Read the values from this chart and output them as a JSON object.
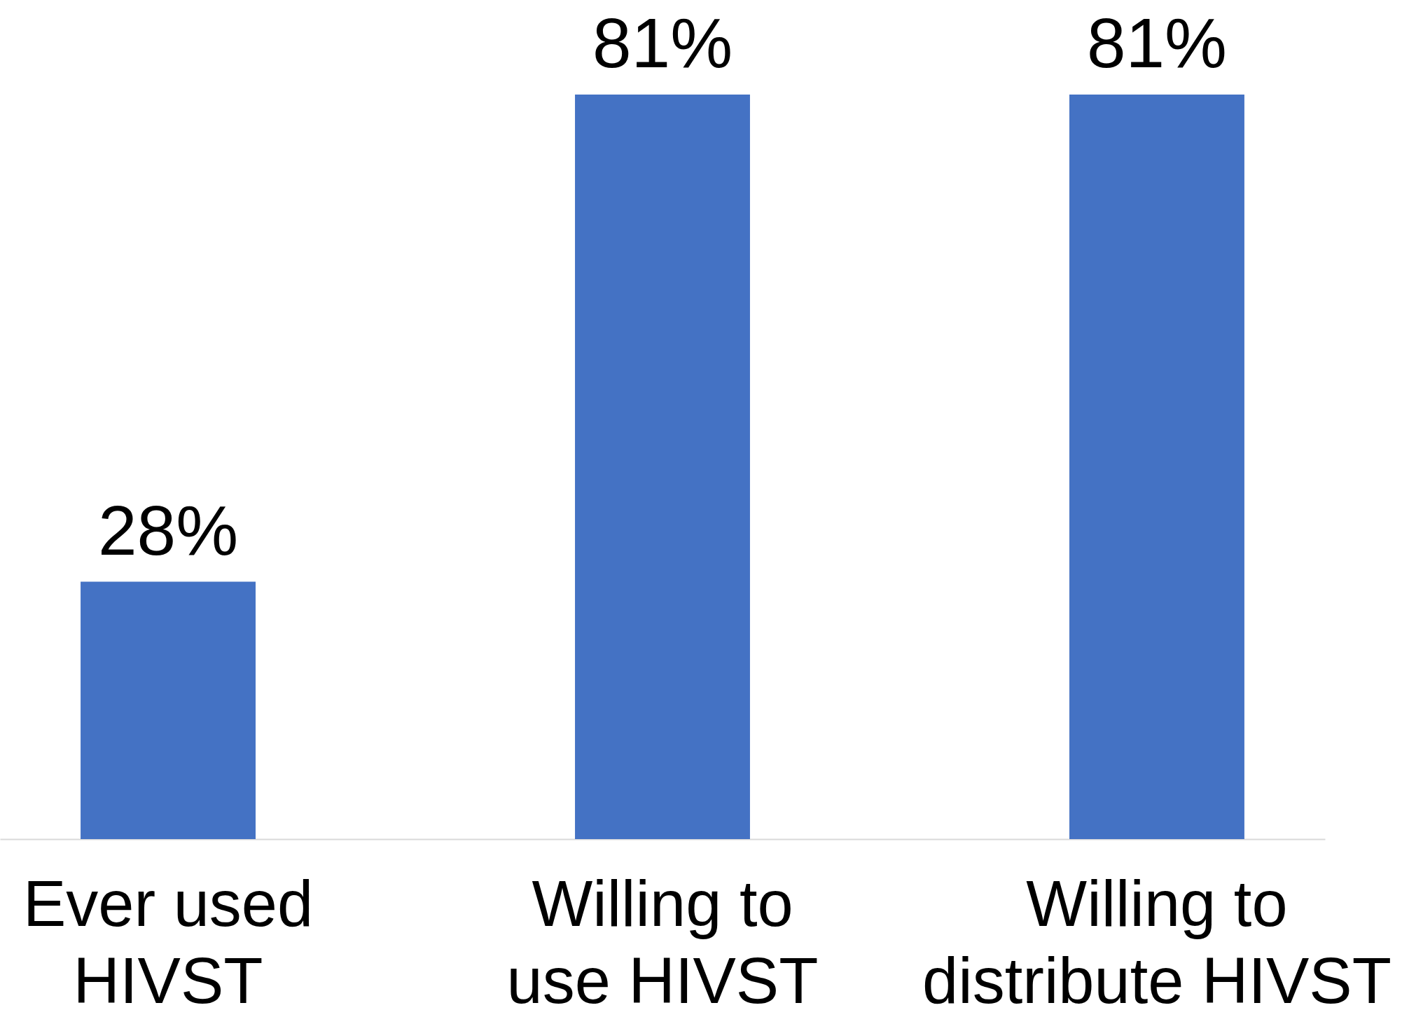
{
  "chart_data": {
    "type": "bar",
    "categories": [
      "Ever used HIVST",
      "Willing to use HIVST",
      "Willing to distribute HIVST"
    ],
    "values": [
      28,
      81,
      81
    ],
    "value_labels": [
      "28%",
      "81%",
      "81%"
    ],
    "color": "#4472c4"
  }
}
